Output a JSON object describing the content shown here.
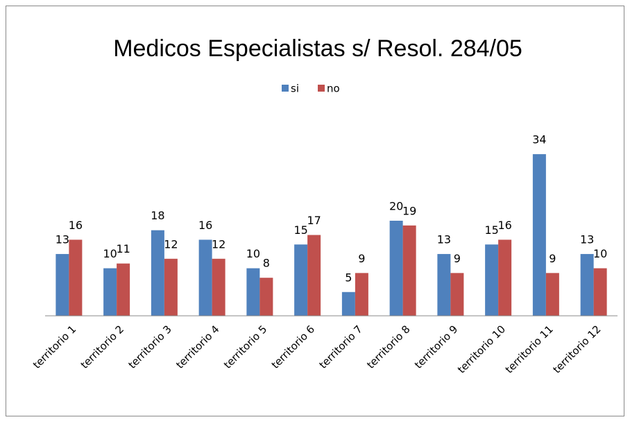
{
  "chart_data": {
    "type": "bar",
    "title": "Medicos Especialistas s/ Resol. 284/05",
    "categories": [
      "territorio 1",
      "territorio 2",
      "territorio 3",
      "territorio 4",
      "territorio 5",
      "territorio 6",
      "territorio 7",
      "territorio 8",
      "territorio 9",
      "territorio 10",
      "territorio 11",
      "territorio 12"
    ],
    "series": [
      {
        "name": "si",
        "color": "#4f81bd",
        "values": [
          13,
          10,
          18,
          16,
          10,
          15,
          5,
          20,
          13,
          15,
          34,
          13
        ]
      },
      {
        "name": "no",
        "color": "#c0504d",
        "values": [
          16,
          11,
          12,
          12,
          8,
          17,
          9,
          19,
          9,
          16,
          9,
          10
        ]
      }
    ],
    "ylim": [
      0,
      40
    ],
    "legend": "top"
  }
}
